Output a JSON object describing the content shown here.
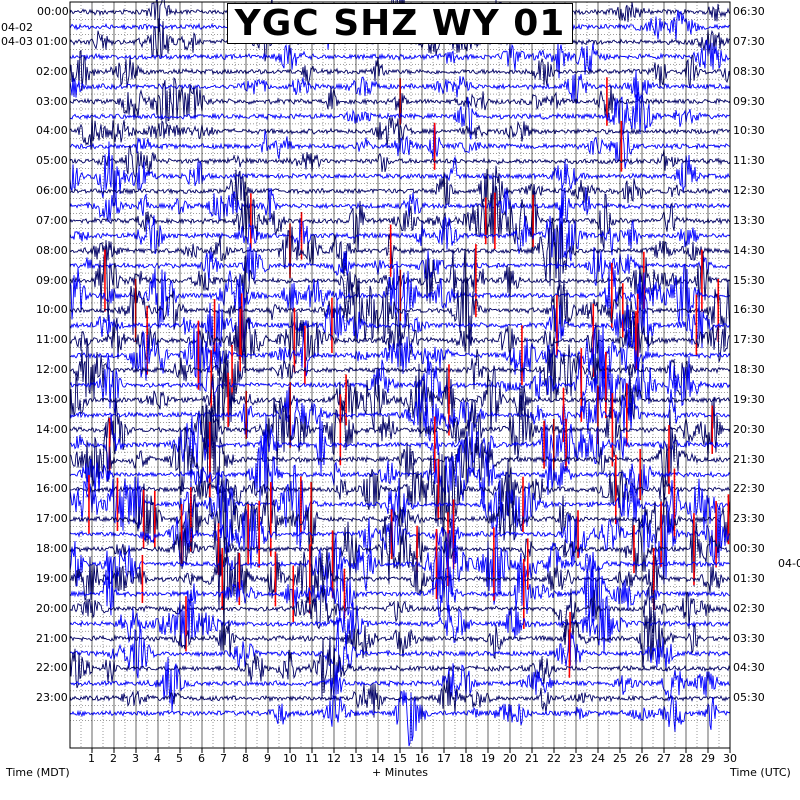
{
  "title": "YGC SHZ WY 01",
  "left_date_top": "04-02",
  "left_date_start": "04-03",
  "right_date_change": "04-0",
  "footer": {
    "left": "Time (MDT)",
    "center": "+ Minutes",
    "right": "Time (UTC)"
  },
  "colors": {
    "trace_dark": "#000066",
    "trace_blue": "#0000ff",
    "pick_red": "#ff0000",
    "grid": "#000000",
    "background": "#ffffff"
  },
  "chart_data": {
    "type": "helicorder",
    "x_ticks": [
      "1",
      "2",
      "3",
      "4",
      "5",
      "6",
      "7",
      "8",
      "9",
      "10",
      "11",
      "12",
      "13",
      "14",
      "15",
      "16",
      "17",
      "18",
      "19",
      "20",
      "21",
      "22",
      "23",
      "24",
      "25",
      "26",
      "27",
      "28",
      "29",
      "30"
    ],
    "xlim": [
      0,
      30
    ],
    "left_time_labels": [
      "00:00",
      "01:00",
      "02:00",
      "03:00",
      "04:00",
      "05:00",
      "06:00",
      "07:00",
      "08:00",
      "09:00",
      "10:00",
      "11:00",
      "12:00",
      "13:00",
      "14:00",
      "15:00",
      "16:00",
      "17:00",
      "18:00",
      "19:00",
      "20:00",
      "21:00",
      "22:00",
      "23:00"
    ],
    "right_time_labels": [
      "06:30",
      "07:30",
      "08:30",
      "09:30",
      "10:30",
      "11:30",
      "12:30",
      "13:30",
      "14:30",
      "15:30",
      "16:30",
      "17:30",
      "18:30",
      "19:30",
      "20:30",
      "21:30",
      "22:30",
      "23:30",
      "00:30",
      "01:30",
      "02:30",
      "03:30",
      "04:30",
      "05:30"
    ],
    "rows_per_hour": 2,
    "row_count": 48,
    "grid": true
  }
}
